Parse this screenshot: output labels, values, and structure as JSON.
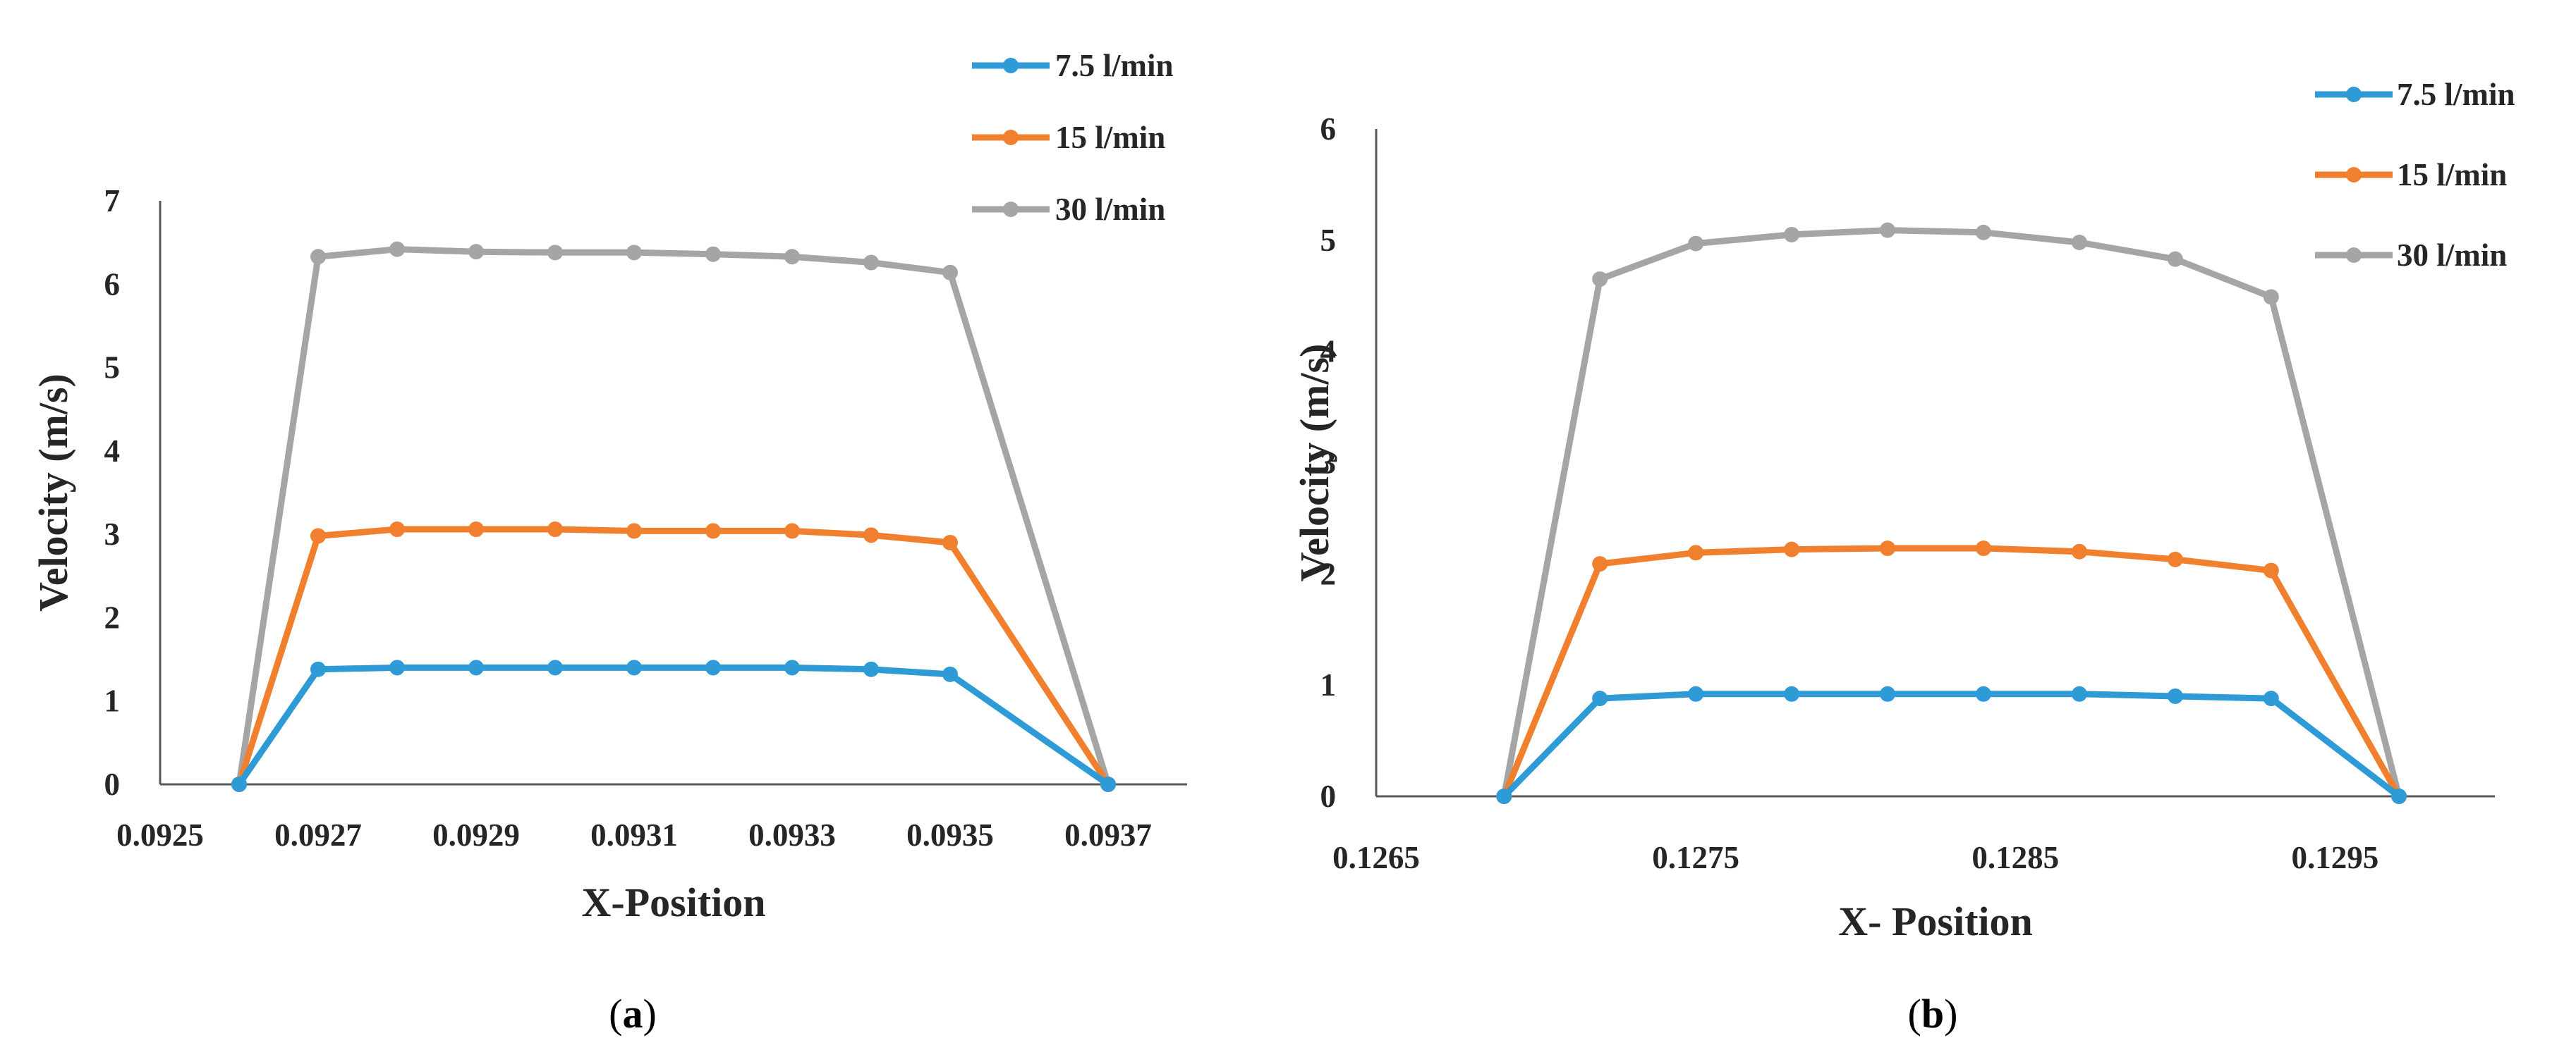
{
  "chart_data": [
    {
      "type": "line",
      "panel_label": "a",
      "xlabel": "X-Position",
      "ylabel": "Velocity (m/s)",
      "xlim": [
        0.0925,
        0.0938
      ],
      "ylim": [
        0,
        7
      ],
      "xticks": [
        "0.0925",
        "0.0927",
        "0.0929",
        "0.0931",
        "0.0933",
        "0.0935",
        "0.0937"
      ],
      "yticks": [
        "0",
        "1",
        "2",
        "3",
        "4",
        "5",
        "6",
        "7"
      ],
      "legend_position": "top-right",
      "x": [
        0.0926,
        0.0927,
        0.0928,
        0.0929,
        0.093,
        0.0931,
        0.0932,
        0.0933,
        0.0934,
        0.0935,
        0.0937
      ],
      "series": [
        {
          "name": "7.5 l/min",
          "color": "#2e9bd6",
          "values": [
            0,
            1.38,
            1.4,
            1.4,
            1.4,
            1.4,
            1.4,
            1.4,
            1.38,
            1.32,
            0
          ]
        },
        {
          "name": "15 l/min",
          "color": "#f07f2e",
          "values": [
            0,
            2.98,
            3.06,
            3.06,
            3.06,
            3.04,
            3.04,
            3.04,
            2.99,
            2.9,
            0
          ]
        },
        {
          "name": "30 l/min",
          "color": "#a5a5a5",
          "values": [
            0,
            6.33,
            6.42,
            6.39,
            6.38,
            6.38,
            6.36,
            6.33,
            6.26,
            6.14,
            0
          ]
        }
      ]
    },
    {
      "type": "line",
      "panel_label": "b",
      "xlabel": "X- Position",
      "ylabel": "Velocity (m/s)",
      "xlim": [
        0.1265,
        0.13
      ],
      "ylim": [
        0,
        6
      ],
      "xticks": [
        "0.1265",
        "0.1275",
        "0.1285",
        "0.1295"
      ],
      "yticks": [
        "0",
        "1",
        "2",
        "3",
        "4",
        "5",
        "6"
      ],
      "legend_position": "top-right",
      "x": [
        0.1269,
        0.1272,
        0.1275,
        0.1278,
        0.1281,
        0.1284,
        0.1287,
        0.129,
        0.1293,
        0.1297
      ],
      "series": [
        {
          "name": "7.5 l/min",
          "color": "#2e9bd6",
          "values": [
            0,
            0.88,
            0.92,
            0.92,
            0.92,
            0.92,
            0.92,
            0.9,
            0.88,
            0
          ]
        },
        {
          "name": "15 l/min",
          "color": "#f07f2e",
          "values": [
            0,
            2.09,
            2.19,
            2.22,
            2.23,
            2.23,
            2.2,
            2.13,
            2.03,
            0
          ]
        },
        {
          "name": "30 l/min",
          "color": "#a5a5a5",
          "values": [
            0,
            4.65,
            4.97,
            5.05,
            5.09,
            5.07,
            4.98,
            4.83,
            4.49,
            0
          ]
        }
      ]
    }
  ]
}
